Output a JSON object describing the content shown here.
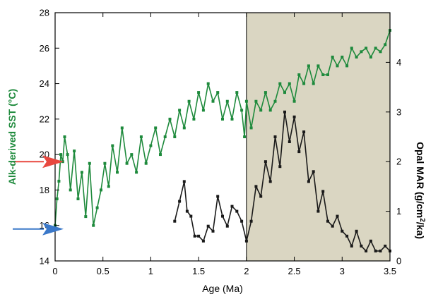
{
  "chart_data": {
    "type": "line",
    "title": "",
    "xlabel": "Age (Ma)",
    "ylabel_left": "Alk-derived SST (°C)",
    "ylabel_right": "Opal MAR (g/cm²/ka)",
    "xlim": [
      0,
      3.5
    ],
    "ylim_left": [
      14,
      28
    ],
    "ylim_right": [
      0,
      5
    ],
    "x_ticks": [
      0,
      0.5,
      1,
      1.5,
      2,
      2.5,
      3,
      3.5
    ],
    "x_tick_labels": [
      "0",
      "0.5",
      "1",
      "1.5",
      "2",
      "2.5",
      "3",
      "3.5"
    ],
    "y_left_ticks": [
      14,
      16,
      18,
      20,
      22,
      24,
      26,
      28
    ],
    "y_left_tick_labels": [
      "14",
      "16",
      "18",
      "20",
      "22",
      "24",
      "26",
      "28"
    ],
    "y_right_ticks": [
      0,
      1,
      2,
      3,
      4
    ],
    "y_right_tick_labels": [
      "0",
      "1",
      "2",
      "3",
      "4"
    ],
    "grid": false,
    "shaded_region": {
      "x_start": 2,
      "x_end": 3.5,
      "color": "#dad6c2"
    },
    "arrows": [
      {
        "name": "red-arrow",
        "y": 19.6,
        "axis": "left",
        "color": "#e8483f"
      },
      {
        "name": "blue-arrow",
        "y": 15.8,
        "axis": "left",
        "color": "#3a78c9"
      }
    ],
    "series": [
      {
        "axis": "left",
        "color": "#1e8a3c",
        "x": [
          0.0,
          0.02,
          0.04,
          0.06,
          0.08,
          0.1,
          0.13,
          0.16,
          0.2,
          0.24,
          0.28,
          0.32,
          0.36,
          0.4,
          0.44,
          0.48,
          0.52,
          0.56,
          0.6,
          0.65,
          0.7,
          0.75,
          0.8,
          0.85,
          0.9,
          0.95,
          1.0,
          1.05,
          1.1,
          1.15,
          1.2,
          1.25,
          1.3,
          1.35,
          1.4,
          1.45,
          1.5,
          1.55,
          1.6,
          1.65,
          1.7,
          1.75,
          1.8,
          1.85,
          1.9,
          1.95,
          1.98,
          2.0,
          2.05,
          2.1,
          2.15,
          2.2,
          2.25,
          2.3,
          2.35,
          2.4,
          2.45,
          2.5,
          2.55,
          2.6,
          2.65,
          2.7,
          2.75,
          2.8,
          2.85,
          2.9,
          2.95,
          3.0,
          3.05,
          3.1,
          3.15,
          3.2,
          3.25,
          3.3,
          3.35,
          3.4,
          3.45,
          3.5
        ],
        "values": [
          16.0,
          17.5,
          18.5,
          20.0,
          19.6,
          21.0,
          20.0,
          18.0,
          20.2,
          17.5,
          19.0,
          16.5,
          19.5,
          16.0,
          17.0,
          18.0,
          19.5,
          18.2,
          20.5,
          19.0,
          21.5,
          19.5,
          20.0,
          19.0,
          21.0,
          19.5,
          20.5,
          21.5,
          20.0,
          21.0,
          22.0,
          21.0,
          22.5,
          21.5,
          23.0,
          22.0,
          23.5,
          22.5,
          24.0,
          23.0,
          23.5,
          22.0,
          23.0,
          22.0,
          23.5,
          22.5,
          21.0,
          23.0,
          21.5,
          23.0,
          22.5,
          23.5,
          22.5,
          23.0,
          24.0,
          23.5,
          24.0,
          23.0,
          24.5,
          24.0,
          25.0,
          24.0,
          25.0,
          24.5,
          24.5,
          25.5,
          25.0,
          25.5,
          25.0,
          26.0,
          25.5,
          25.8,
          26.0,
          25.5,
          26.0,
          25.8,
          26.2,
          27.0
        ]
      },
      {
        "axis": "right",
        "color": "#1a1a1a",
        "x": [
          1.25,
          1.3,
          1.35,
          1.38,
          1.42,
          1.46,
          1.5,
          1.55,
          1.6,
          1.65,
          1.7,
          1.75,
          1.8,
          1.85,
          1.9,
          1.95,
          2.0,
          2.05,
          2.1,
          2.15,
          2.2,
          2.25,
          2.3,
          2.35,
          2.4,
          2.45,
          2.5,
          2.55,
          2.6,
          2.65,
          2.7,
          2.75,
          2.8,
          2.85,
          2.9,
          2.95,
          3.0,
          3.05,
          3.1,
          3.15,
          3.2,
          3.25,
          3.3,
          3.35,
          3.4,
          3.45,
          3.5
        ],
        "values": [
          0.8,
          1.2,
          1.6,
          1.0,
          0.9,
          0.5,
          0.5,
          0.4,
          0.7,
          0.6,
          1.3,
          0.9,
          0.7,
          1.1,
          1.0,
          0.8,
          0.4,
          0.8,
          1.5,
          1.3,
          2.0,
          1.6,
          2.5,
          1.9,
          3.0,
          2.4,
          2.9,
          2.2,
          2.6,
          1.6,
          1.8,
          1.0,
          1.4,
          0.8,
          0.7,
          0.9,
          0.6,
          0.5,
          0.3,
          0.6,
          0.3,
          0.2,
          0.4,
          0.2,
          0.2,
          0.3,
          0.2
        ]
      }
    ]
  }
}
